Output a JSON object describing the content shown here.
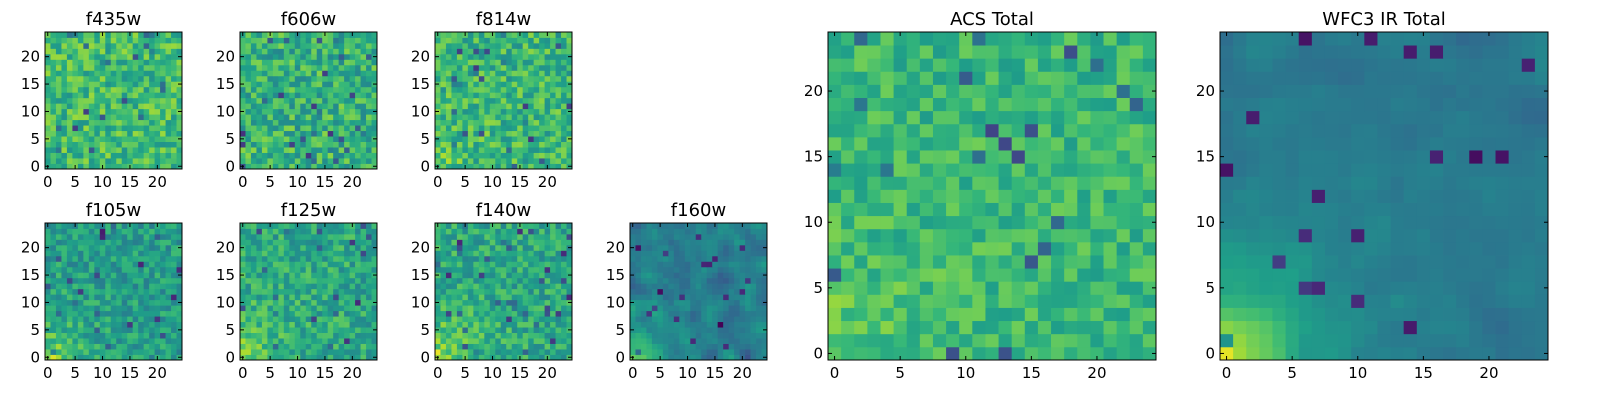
{
  "chart_data": [
    {
      "type": "heatmap",
      "title": "f435w",
      "grid_size": 25,
      "xlim": [
        -0.5,
        24.5
      ],
      "ylim": [
        -0.5,
        24.5
      ],
      "xticks": [
        0,
        5,
        10,
        15,
        20
      ],
      "yticks": [
        0,
        5,
        10,
        15,
        20
      ],
      "value_range": [
        0,
        1
      ],
      "mean": 0.68,
      "spread": 0.17,
      "falloff": 0.0,
      "seed": 11,
      "colormap": "viridis"
    },
    {
      "type": "heatmap",
      "title": "f606w",
      "grid_size": 25,
      "xlim": [
        -0.5,
        24.5
      ],
      "ylim": [
        -0.5,
        24.5
      ],
      "xticks": [
        0,
        5,
        10,
        15,
        20
      ],
      "yticks": [
        0,
        5,
        10,
        15,
        20
      ],
      "value_range": [
        0,
        1
      ],
      "mean": 0.64,
      "spread": 0.18,
      "falloff": 0.05,
      "seed": 23,
      "colormap": "viridis"
    },
    {
      "type": "heatmap",
      "title": "f814w",
      "grid_size": 25,
      "xlim": [
        -0.5,
        24.5
      ],
      "ylim": [
        -0.5,
        24.5
      ],
      "xticks": [
        0,
        5,
        10,
        15,
        20
      ],
      "yticks": [
        0,
        5,
        10,
        15,
        20
      ],
      "value_range": [
        0,
        1
      ],
      "mean": 0.66,
      "spread": 0.17,
      "falloff": 0.1,
      "seed": 37,
      "colormap": "viridis"
    },
    {
      "type": "heatmap",
      "title": "f105w",
      "grid_size": 25,
      "xlim": [
        -0.5,
        24.5
      ],
      "ylim": [
        -0.5,
        24.5
      ],
      "xticks": [
        0,
        5,
        10,
        15,
        20
      ],
      "yticks": [
        0,
        5,
        10,
        15,
        20
      ],
      "value_range": [
        0,
        1
      ],
      "mean": 0.55,
      "spread": 0.14,
      "falloff": 0.35,
      "seed": 41,
      "colormap": "viridis"
    },
    {
      "type": "heatmap",
      "title": "f125w",
      "grid_size": 25,
      "xlim": [
        -0.5,
        24.5
      ],
      "ylim": [
        -0.5,
        24.5
      ],
      "xticks": [
        0,
        5,
        10,
        15,
        20
      ],
      "yticks": [
        0,
        5,
        10,
        15,
        20
      ],
      "value_range": [
        0,
        1
      ],
      "mean": 0.6,
      "spread": 0.15,
      "falloff": 0.3,
      "seed": 53,
      "colormap": "viridis"
    },
    {
      "type": "heatmap",
      "title": "f140w",
      "grid_size": 25,
      "xlim": [
        -0.5,
        24.5
      ],
      "ylim": [
        -0.5,
        24.5
      ],
      "xticks": [
        0,
        5,
        10,
        15,
        20
      ],
      "yticks": [
        0,
        5,
        10,
        15,
        20
      ],
      "value_range": [
        0,
        1
      ],
      "mean": 0.6,
      "spread": 0.15,
      "falloff": 0.35,
      "seed": 67,
      "colormap": "viridis"
    },
    {
      "type": "heatmap",
      "title": "f160w",
      "grid_size": 25,
      "xlim": [
        -0.5,
        24.5
      ],
      "ylim": [
        -0.5,
        24.5
      ],
      "xticks": [
        0,
        5,
        10,
        15,
        20
      ],
      "yticks": [
        0,
        5,
        10,
        15,
        20
      ],
      "value_range": [
        0,
        1
      ],
      "mean": 0.42,
      "spread": 0.14,
      "falloff": 0.5,
      "seed": 79,
      "colormap": "viridis"
    },
    {
      "type": "heatmap",
      "title": "ACS Total",
      "grid_size": 25,
      "xlim": [
        -0.5,
        24.5
      ],
      "ylim": [
        -0.5,
        24.5
      ],
      "xticks": [
        0,
        5,
        10,
        15,
        20
      ],
      "yticks": [
        0,
        5,
        10,
        15,
        20
      ],
      "value_range": [
        0,
        1
      ],
      "mean": 0.66,
      "spread": 0.12,
      "falloff": 0.15,
      "seed": 97,
      "colormap": "viridis"
    },
    {
      "type": "heatmap",
      "title": "WFC3 IR Total",
      "grid_size": 25,
      "xlim": [
        -0.5,
        24.5
      ],
      "ylim": [
        -0.5,
        24.5
      ],
      "xticks": [
        0,
        5,
        10,
        15,
        20
      ],
      "yticks": [
        0,
        5,
        10,
        15,
        20
      ],
      "value_range": [
        0,
        1
      ],
      "mean": 0.4,
      "spread": 0.06,
      "falloff": 0.65,
      "seed": 113,
      "colormap": "viridis"
    }
  ]
}
